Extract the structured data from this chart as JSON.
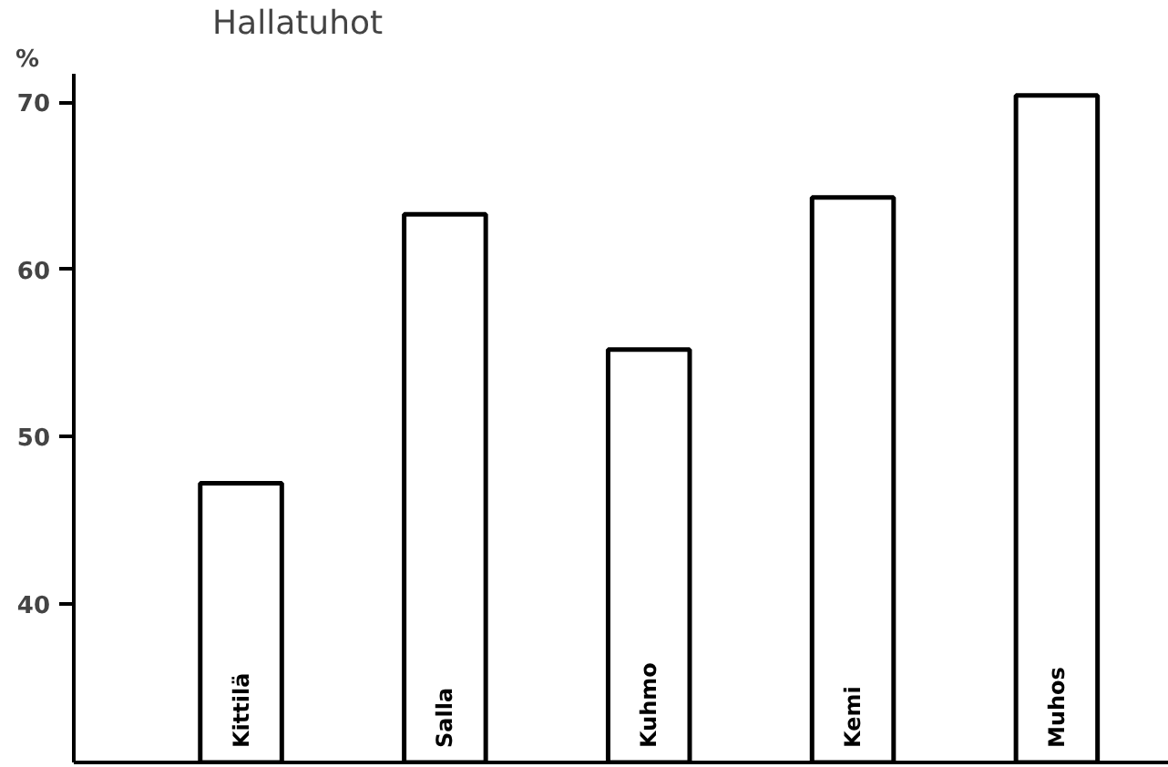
{
  "chart_data": {
    "type": "bar",
    "title": "Hallatuhot",
    "ylabel": "%",
    "categories": [
      "Kittilä",
      "Salla",
      "Kuhmo",
      "Kemi",
      "Muhos"
    ],
    "values": [
      47.2,
      63.3,
      55.2,
      64.3,
      70.4
    ],
    "color": "#ffffff",
    "ylim": [
      30.5,
      71.7
    ],
    "yticks": [
      40,
      50,
      60,
      70
    ],
    "grid": false,
    "tick_labels": "y"
  }
}
